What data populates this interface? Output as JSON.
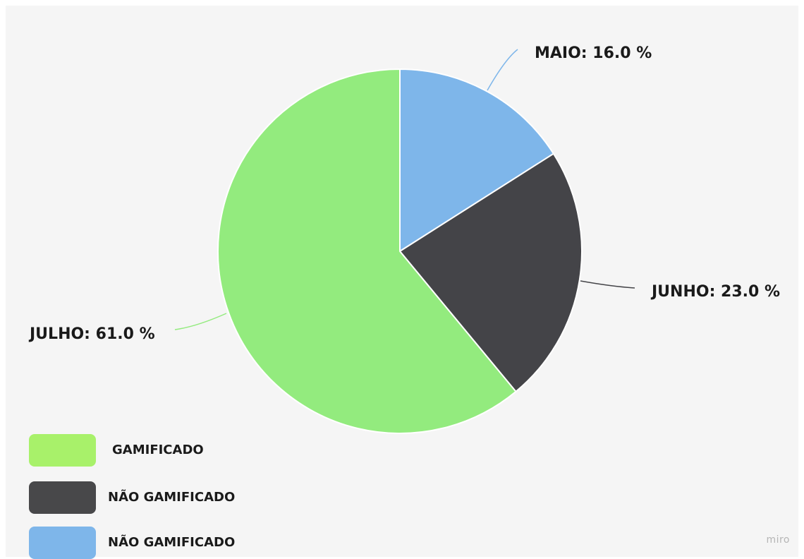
{
  "chart_data": {
    "type": "pie",
    "title": "",
    "unit": "%",
    "slices": [
      {
        "label": "MAIO",
        "value": 16.0,
        "label_text": "MAIO: 16.0 %",
        "color": "#7eb6ea"
      },
      {
        "label": "JUNHO",
        "value": 23.0,
        "label_text": "JUNHO: 23.0 %",
        "color": "#444448"
      },
      {
        "label": "JULHO",
        "value": 61.0,
        "label_text": "JULHO: 61.0 %",
        "color": "#93eb7e"
      }
    ],
    "legend": {
      "position": "bottom-left",
      "items": [
        {
          "label": "GAMIFICADO",
          "color": "#a8f16a"
        },
        {
          "label": "NÃO GAMIFICADO",
          "color": "#48484a"
        },
        {
          "label": "NÃO GAMIFICADO",
          "color": "#7eb6ea"
        }
      ]
    }
  },
  "watermark": "miro"
}
